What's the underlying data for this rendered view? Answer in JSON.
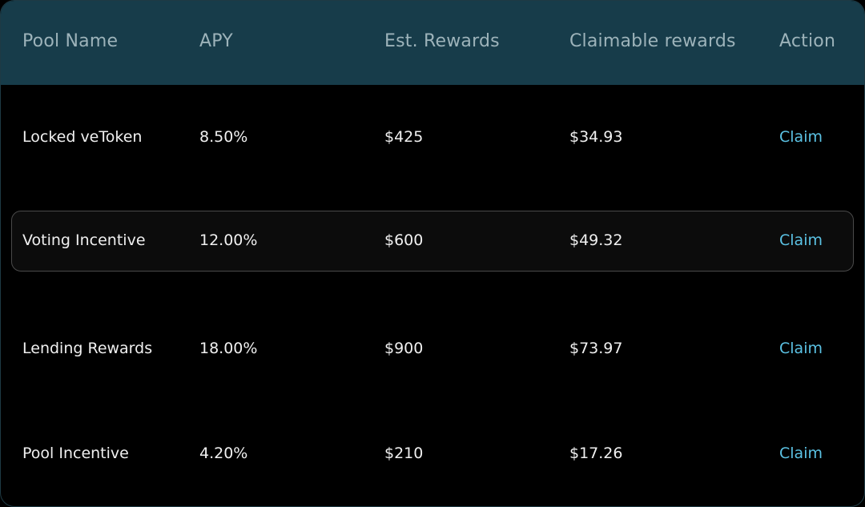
{
  "table": {
    "columns": [
      "Pool Name",
      "APY",
      "Est. Rewards",
      "Claimable rewards",
      "Action"
    ],
    "rows": [
      {
        "pool": "Locked veToken",
        "apy": "8.50%",
        "est": "$425",
        "claimable": "$34.93",
        "action": "Claim"
      },
      {
        "pool": "Voting Incentive",
        "apy": "12.00%",
        "est": "$600",
        "claimable": "$49.32",
        "action": "Claim",
        "highlighted": true
      },
      {
        "pool": "Lending Rewards",
        "apy": "18.00%",
        "est": "$900",
        "claimable": "$73.97",
        "action": "Claim"
      },
      {
        "pool": "Pool Incentive",
        "apy": "4.20%",
        "est": "$210",
        "claimable": "$17.26",
        "action": "Claim"
      }
    ]
  },
  "colors": {
    "header_bg": "#173c4a",
    "accent": "#5bc2e4",
    "background": "#000000"
  }
}
